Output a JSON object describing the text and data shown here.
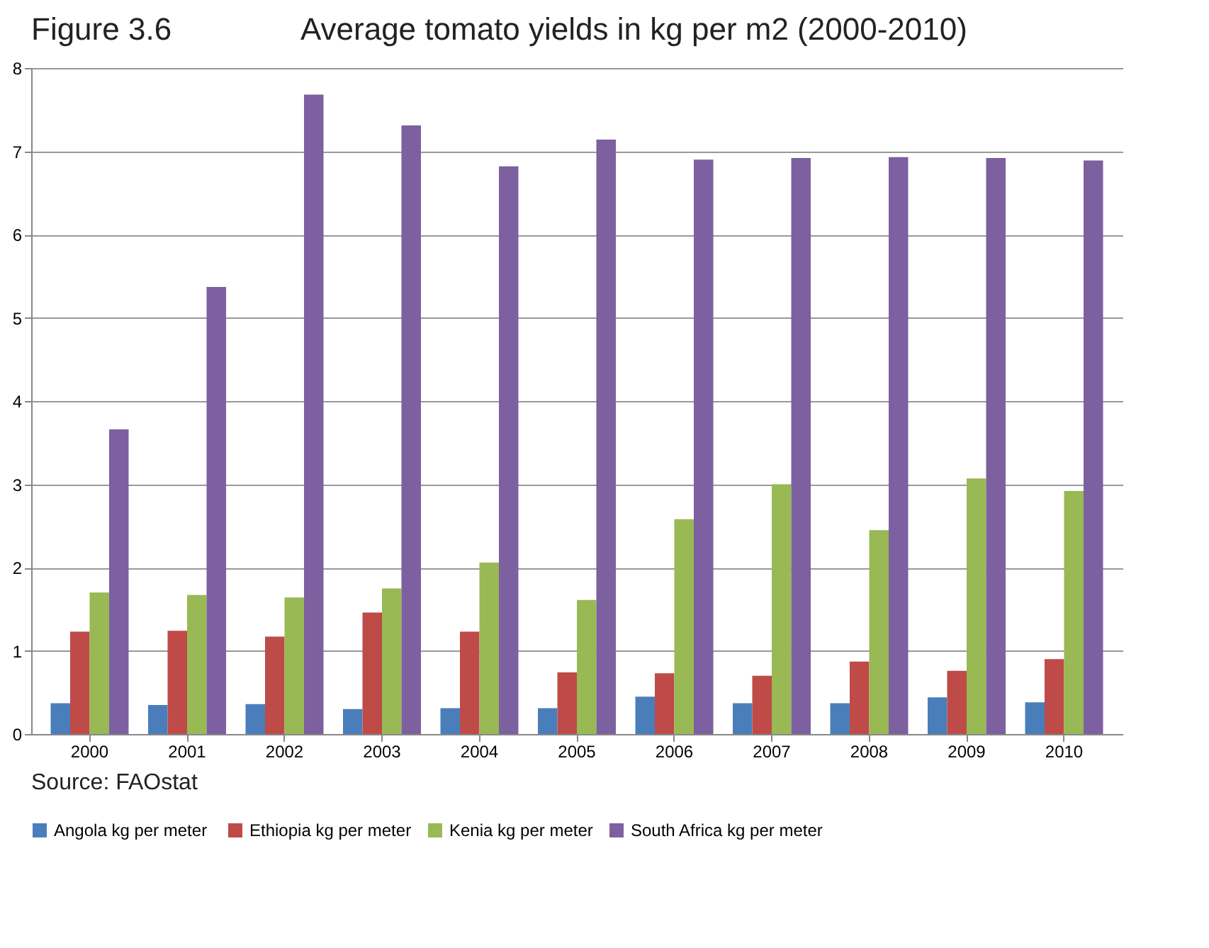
{
  "chart_data": {
    "type": "bar",
    "title": "Average tomato yields in kg per m2 (2000-2010)",
    "annotations": [
      "Figure 3.6",
      "Source: FAOstat"
    ],
    "categories": [
      "2000",
      "2001",
      "2002",
      "2003",
      "2004",
      "2005",
      "2006",
      "2007",
      "2008",
      "2009",
      "2010"
    ],
    "series": [
      {
        "name": "Angola  kg per meter",
        "color": "#4a7ebb",
        "values": [
          0.37,
          0.35,
          0.36,
          0.3,
          0.31,
          0.31,
          0.45,
          0.37,
          0.37,
          0.44,
          0.38
        ]
      },
      {
        "name": "Ethiopia kg per meter",
        "color": "#be4b48",
        "values": [
          1.23,
          1.24,
          1.17,
          1.46,
          1.23,
          0.74,
          0.73,
          0.7,
          0.87,
          0.76,
          0.9
        ]
      },
      {
        "name": "Kenia kg per meter",
        "color": "#98b954",
        "values": [
          1.7,
          1.67,
          1.64,
          1.75,
          2.06,
          1.61,
          2.58,
          3.0,
          2.45,
          3.07,
          2.92
        ]
      },
      {
        "name": "South Africa  kg per meter",
        "color": "#7d60a0",
        "values": [
          3.66,
          5.37,
          7.68,
          7.31,
          6.82,
          7.14,
          6.9,
          6.92,
          6.93,
          6.92,
          6.89
        ]
      }
    ],
    "ylim": [
      0,
      8
    ],
    "yticks": [
      0,
      1,
      2,
      3,
      4,
      5,
      6,
      7,
      8
    ],
    "grid": "y",
    "legend": "bottom"
  }
}
